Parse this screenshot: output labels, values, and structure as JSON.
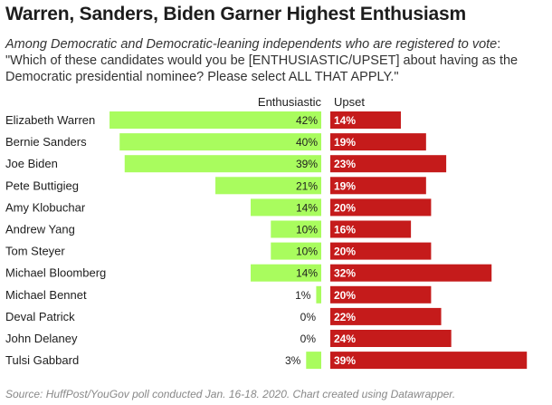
{
  "title": "Warren, Sanders, Biden Garner Highest Enthusiasm",
  "subtitle_lead": "Among Democratic and Democratic-leaning independents who are registered to vote",
  "subtitle_rest": ": \"Which of these candidates would you be [ENTHUSIASTIC/UPSET] about having as the Democratic presidential nominee? Please select ALL THAT APPLY.\"",
  "source": "Source: HuffPost/YouGov poll conducted Jan. 16-18. 2020. Chart created using Datawrapper.",
  "colors": {
    "enthusiastic": "#a9fc5e",
    "upset": "#c51b1b",
    "text": "#1d1d1d"
  },
  "chart_data": {
    "type": "bar",
    "orientation": "horizontal",
    "layout": "diverging",
    "categories": [
      "Elizabeth Warren",
      "Bernie Sanders",
      "Joe Biden",
      "Pete Buttigieg",
      "Amy Klobuchar",
      "Andrew Yang",
      "Tom Steyer",
      "Michael Bloomberg",
      "Michael Bennet",
      "Deval Patrick",
      "John Delaney",
      "Tulsi Gabbard"
    ],
    "series": [
      {
        "name": "Enthusiastic",
        "values": [
          42,
          40,
          39,
          21,
          14,
          10,
          10,
          14,
          1,
          0,
          0,
          3
        ]
      },
      {
        "name": "Upset",
        "values": [
          14,
          19,
          23,
          19,
          20,
          16,
          20,
          32,
          20,
          22,
          24,
          39
        ]
      }
    ],
    "unit": "%",
    "xlim": [
      0,
      42
    ]
  }
}
